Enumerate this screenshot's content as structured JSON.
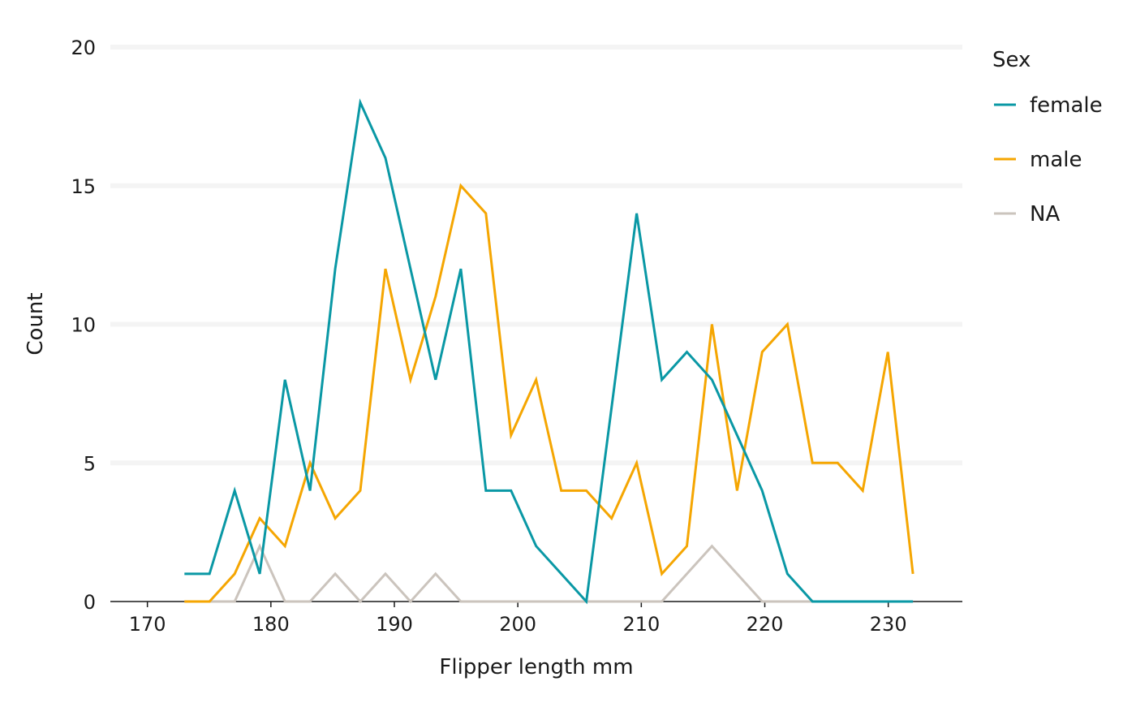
{
  "chart_data": {
    "type": "line",
    "xlabel": "Flipper length mm",
    "ylabel": "Count",
    "xlim": [
      167,
      236
    ],
    "ylim": [
      0,
      20
    ],
    "x_ticks": [
      170,
      180,
      190,
      200,
      210,
      220,
      230
    ],
    "y_ticks": [
      0,
      5,
      10,
      15,
      20
    ],
    "grid": "horizontal major lines",
    "legend": {
      "title": "Sex",
      "position": "right"
    },
    "x": [
      173,
      175.03,
      177.07,
      179.1,
      181.14,
      183.17,
      185.21,
      187.24,
      189.28,
      191.31,
      193.34,
      195.38,
      197.41,
      199.45,
      201.48,
      203.52,
      205.55,
      207.59,
      209.62,
      211.66,
      213.69,
      215.72,
      217.76,
      219.79,
      221.83,
      223.86,
      225.9,
      227.93,
      229.97,
      232
    ],
    "series": [
      {
        "name": "female",
        "color": "#0a98a5",
        "values": [
          1,
          1,
          4,
          1,
          8,
          4,
          12,
          18,
          16,
          12,
          8,
          12,
          4,
          4,
          2,
          1,
          0,
          7,
          14,
          8,
          9,
          8,
          6,
          4,
          1,
          0,
          0,
          0,
          0,
          0
        ]
      },
      {
        "name": "male",
        "color": "#f5a602",
        "values": [
          0,
          0,
          1,
          3,
          2,
          5,
          3,
          4,
          12,
          8,
          11,
          15,
          14,
          6,
          8,
          4,
          4,
          3,
          5,
          1,
          2,
          10,
          4,
          9,
          10,
          5,
          5,
          4,
          9,
          1
        ]
      },
      {
        "name": "NA",
        "color": "#cbc4bd",
        "values": [
          0,
          0,
          0,
          2,
          0,
          0,
          1,
          0,
          1,
          0,
          1,
          0,
          0,
          0,
          0,
          0,
          0,
          0,
          0,
          0,
          1,
          2,
          1,
          0,
          0,
          0,
          0,
          0,
          0,
          0
        ]
      }
    ]
  }
}
